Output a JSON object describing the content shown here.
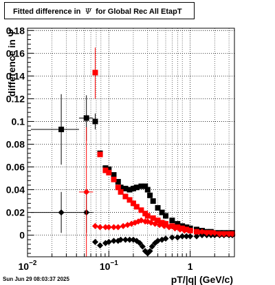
{
  "chart_data": {
    "type": "scatter",
    "title_prefix": "Fitted difference in",
    "title_symbol": "Ψ",
    "title_suffix": "for Global Rec All EtapT",
    "xlabel": "pT/|q| (GeV/c)",
    "ylabel": "difference in Ψ",
    "xscale": "log",
    "xlim": [
      0.01,
      3.5
    ],
    "ylim": [
      -0.019,
      0.182
    ],
    "grid": true,
    "x_ticks": [
      {
        "value": 0.01,
        "base": "10",
        "exp": "−2"
      },
      {
        "value": 0.1,
        "base": "10",
        "exp": "−1"
      },
      {
        "value": 1,
        "base": "1",
        "exp": ""
      }
    ],
    "y_ticks": [
      "0",
      "0.02",
      "0.04",
      "0.06",
      "0.08",
      "0.1",
      "0.12",
      "0.14",
      "0.16",
      "0.18"
    ],
    "series": [
      {
        "marker": "square",
        "color": "#000000",
        "points": [
          {
            "x": 0.026,
            "y": 0.093,
            "xlo": 0.011,
            "xhi": 0.043,
            "ylo": 0.062,
            "yhi": 0.124
          },
          {
            "x": 0.053,
            "y": 0.103,
            "xlo": 0.043,
            "xhi": 0.064,
            "ylo": 0.083,
            "yhi": 0.123
          },
          {
            "x": 0.068,
            "y": 0.1,
            "xlo": 0.064,
            "xhi": 0.072,
            "ylo": 0.093,
            "yhi": 0.107
          },
          {
            "x": 0.078,
            "y": 0.072
          },
          {
            "x": 0.091,
            "y": 0.059
          },
          {
            "x": 0.1,
            "y": 0.058
          },
          {
            "x": 0.115,
            "y": 0.053
          },
          {
            "x": 0.13,
            "y": 0.047
          },
          {
            "x": 0.14,
            "y": 0.042
          },
          {
            "x": 0.16,
            "y": 0.041
          },
          {
            "x": 0.18,
            "y": 0.04
          },
          {
            "x": 0.2,
            "y": 0.041
          },
          {
            "x": 0.22,
            "y": 0.042
          },
          {
            "x": 0.25,
            "y": 0.043
          },
          {
            "x": 0.28,
            "y": 0.043
          },
          {
            "x": 0.3,
            "y": 0.04
          },
          {
            "x": 0.32,
            "y": 0.035
          },
          {
            "x": 0.35,
            "y": 0.03
          },
          {
            "x": 0.4,
            "y": 0.024
          },
          {
            "x": 0.45,
            "y": 0.02
          },
          {
            "x": 0.5,
            "y": 0.017
          },
          {
            "x": 0.6,
            "y": 0.013
          },
          {
            "x": 0.7,
            "y": 0.01
          },
          {
            "x": 0.8,
            "y": 0.008
          },
          {
            "x": 0.9,
            "y": 0.007
          },
          {
            "x": 1.0,
            "y": 0.006
          },
          {
            "x": 1.2,
            "y": 0.005
          },
          {
            "x": 1.4,
            "y": 0.004
          },
          {
            "x": 1.6,
            "y": 0.003
          },
          {
            "x": 1.8,
            "y": 0.003
          },
          {
            "x": 2.0,
            "y": 0.002
          },
          {
            "x": 2.3,
            "y": 0.002
          },
          {
            "x": 2.6,
            "y": 0.002
          },
          {
            "x": 3.0,
            "y": 0.002
          },
          {
            "x": 3.3,
            "y": 0.002
          }
        ]
      },
      {
        "marker": "square",
        "color": "#ff0000",
        "points": [
          {
            "x": 0.068,
            "y": 0.143,
            "xlo": 0.064,
            "xhi": 0.072,
            "ylo": 0.12,
            "yhi": 0.165
          },
          {
            "x": 0.078,
            "y": 0.071
          },
          {
            "x": 0.091,
            "y": 0.057
          },
          {
            "x": 0.1,
            "y": 0.055
          },
          {
            "x": 0.115,
            "y": 0.049
          },
          {
            "x": 0.13,
            "y": 0.042
          },
          {
            "x": 0.14,
            "y": 0.038
          },
          {
            "x": 0.16,
            "y": 0.034
          },
          {
            "x": 0.18,
            "y": 0.031
          },
          {
            "x": 0.2,
            "y": 0.028
          },
          {
            "x": 0.22,
            "y": 0.025
          },
          {
            "x": 0.25,
            "y": 0.022
          },
          {
            "x": 0.28,
            "y": 0.019
          },
          {
            "x": 0.3,
            "y": 0.017
          },
          {
            "x": 0.35,
            "y": 0.015
          },
          {
            "x": 0.4,
            "y": 0.013
          },
          {
            "x": 0.45,
            "y": 0.011
          },
          {
            "x": 0.5,
            "y": 0.01
          },
          {
            "x": 0.6,
            "y": 0.008
          },
          {
            "x": 0.7,
            "y": 0.007
          },
          {
            "x": 0.8,
            "y": 0.006
          },
          {
            "x": 0.9,
            "y": 0.005
          },
          {
            "x": 1.0,
            "y": 0.004
          },
          {
            "x": 1.2,
            "y": 0.003
          },
          {
            "x": 1.4,
            "y": 0.002
          },
          {
            "x": 1.6,
            "y": 0.002
          },
          {
            "x": 1.8,
            "y": 0.002
          },
          {
            "x": 2.0,
            "y": 0.001
          },
          {
            "x": 2.3,
            "y": 0.001
          },
          {
            "x": 2.6,
            "y": 0.001
          },
          {
            "x": 3.0,
            "y": 0.001
          },
          {
            "x": 3.3,
            "y": 0.001
          }
        ]
      },
      {
        "marker": "diamond",
        "color": "#000000",
        "points": [
          {
            "x": 0.026,
            "y": 0.02,
            "xlo": 0.011,
            "xhi": 0.043,
            "ylo": 0.002,
            "yhi": 0.038
          },
          {
            "x": 0.053,
            "y": 0.02,
            "xlo": 0.043,
            "xhi": 0.064,
            "ylo": 0.002,
            "yhi": 0.038
          },
          {
            "x": 0.068,
            "y": -0.006
          },
          {
            "x": 0.078,
            "y": -0.009
          },
          {
            "x": 0.091,
            "y": -0.007
          },
          {
            "x": 0.1,
            "y": -0.006
          },
          {
            "x": 0.115,
            "y": -0.005
          },
          {
            "x": 0.13,
            "y": -0.005
          },
          {
            "x": 0.14,
            "y": -0.004
          },
          {
            "x": 0.16,
            "y": -0.004
          },
          {
            "x": 0.18,
            "y": -0.004
          },
          {
            "x": 0.2,
            "y": -0.004
          },
          {
            "x": 0.22,
            "y": -0.005
          },
          {
            "x": 0.24,
            "y": -0.007
          },
          {
            "x": 0.26,
            "y": -0.01
          },
          {
            "x": 0.28,
            "y": -0.014
          },
          {
            "x": 0.3,
            "y": -0.016
          },
          {
            "x": 0.32,
            "y": -0.014
          },
          {
            "x": 0.34,
            "y": -0.01
          },
          {
            "x": 0.37,
            "y": -0.007
          },
          {
            "x": 0.4,
            "y": -0.005
          },
          {
            "x": 0.45,
            "y": -0.004
          },
          {
            "x": 0.5,
            "y": -0.003
          },
          {
            "x": 0.6,
            "y": -0.002
          },
          {
            "x": 0.7,
            "y": -0.002
          },
          {
            "x": 0.8,
            "y": -0.001
          },
          {
            "x": 0.9,
            "y": -0.001
          },
          {
            "x": 1.0,
            "y": -0.001
          },
          {
            "x": 1.2,
            "y": -0.001
          },
          {
            "x": 1.4,
            "y": 0.0
          },
          {
            "x": 1.6,
            "y": 0.0
          },
          {
            "x": 1.8,
            "y": 0.0
          },
          {
            "x": 2.0,
            "y": 0.0
          },
          {
            "x": 2.3,
            "y": 0.0
          },
          {
            "x": 2.6,
            "y": 0.0
          },
          {
            "x": 3.0,
            "y": 0.0
          },
          {
            "x": 3.3,
            "y": 0.0
          }
        ]
      },
      {
        "marker": "diamond",
        "color": "#ff0000",
        "points": [
          {
            "x": 0.053,
            "y": 0.038,
            "xlo": 0.043,
            "xhi": 0.064,
            "ylo": -0.019,
            "yhi": 0.095
          },
          {
            "x": 0.068,
            "y": 0.008
          },
          {
            "x": 0.078,
            "y": 0.007
          },
          {
            "x": 0.091,
            "y": 0.007
          },
          {
            "x": 0.1,
            "y": 0.007
          },
          {
            "x": 0.115,
            "y": 0.007
          },
          {
            "x": 0.13,
            "y": 0.007
          },
          {
            "x": 0.15,
            "y": 0.008
          },
          {
            "x": 0.17,
            "y": 0.009
          },
          {
            "x": 0.19,
            "y": 0.01
          },
          {
            "x": 0.21,
            "y": 0.011
          },
          {
            "x": 0.23,
            "y": 0.012
          },
          {
            "x": 0.25,
            "y": 0.013
          },
          {
            "x": 0.28,
            "y": 0.012
          },
          {
            "x": 0.3,
            "y": 0.012
          },
          {
            "x": 0.33,
            "y": 0.011
          },
          {
            "x": 0.37,
            "y": 0.01
          },
          {
            "x": 0.42,
            "y": 0.009
          },
          {
            "x": 0.48,
            "y": 0.008
          },
          {
            "x": 0.55,
            "y": 0.007
          },
          {
            "x": 0.65,
            "y": 0.006
          },
          {
            "x": 0.75,
            "y": 0.005
          },
          {
            "x": 0.85,
            "y": 0.004
          },
          {
            "x": 1.0,
            "y": 0.004
          },
          {
            "x": 1.2,
            "y": 0.003
          },
          {
            "x": 1.4,
            "y": 0.003
          },
          {
            "x": 1.6,
            "y": 0.002
          },
          {
            "x": 1.8,
            "y": 0.002
          },
          {
            "x": 2.0,
            "y": 0.002
          },
          {
            "x": 2.3,
            "y": 0.001
          },
          {
            "x": 2.6,
            "y": 0.001
          },
          {
            "x": 3.0,
            "y": 0.001
          },
          {
            "x": 3.3,
            "y": 0.001
          }
        ]
      }
    ]
  },
  "footer": {
    "datestamp": "Sun Jun 29 08:03:37 2025"
  }
}
